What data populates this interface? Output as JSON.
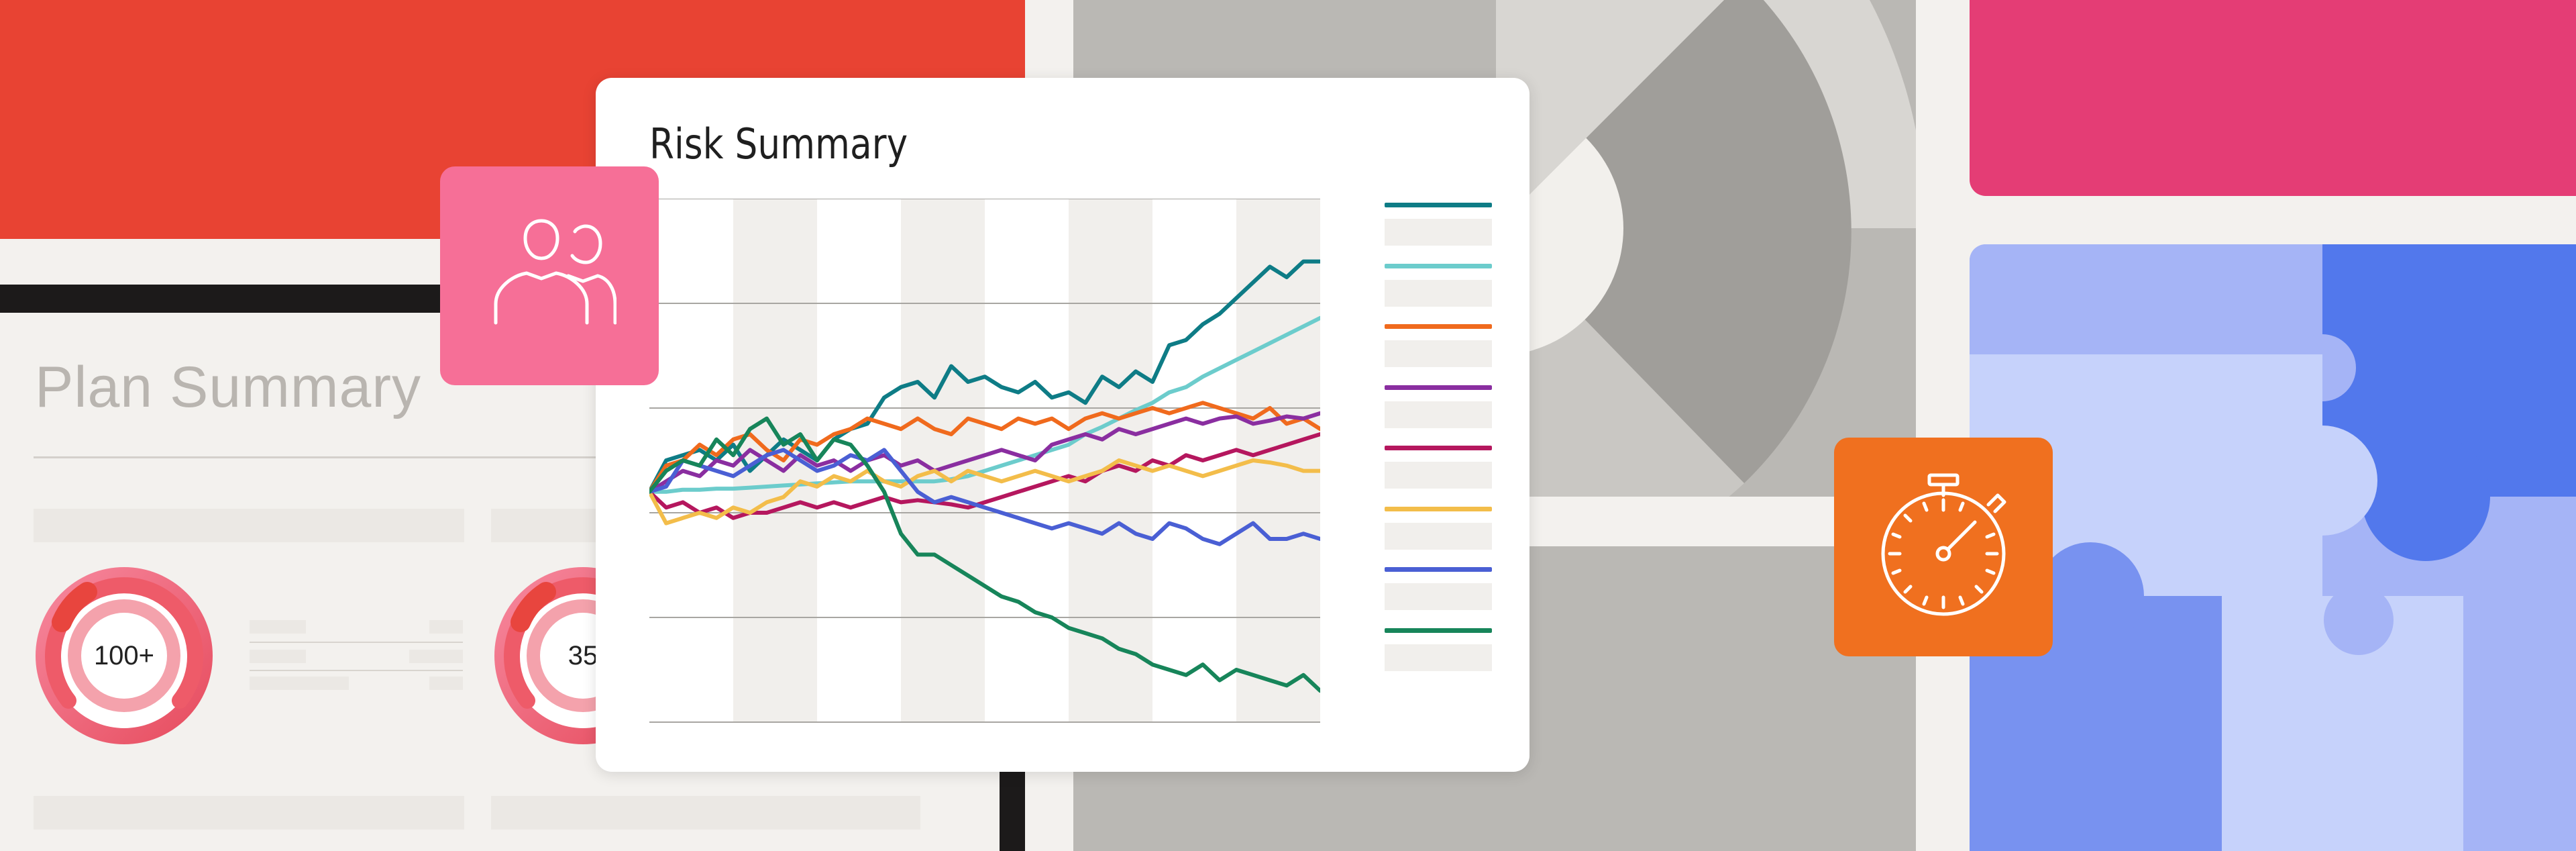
{
  "plan_summary": {
    "title": "Plan Summary",
    "gauges": [
      {
        "value_text": "100+"
      },
      {
        "value_text": "35"
      }
    ]
  },
  "risk_summary": {
    "title": "Risk Summary",
    "legend": [
      {
        "color": "#0e7c86"
      },
      {
        "color": "#6ccccc"
      },
      {
        "color": "#f06a1d"
      },
      {
        "color": "#8a2ea0"
      },
      {
        "color": "#b5175e"
      },
      {
        "color": "#f3bd4a"
      },
      {
        "color": "#4a5fd4"
      },
      {
        "color": "#17855a"
      }
    ]
  },
  "chart_data": {
    "type": "line",
    "title": "Risk Summary",
    "x": [
      0,
      1,
      2,
      3,
      4,
      5,
      6,
      7,
      8,
      9,
      10,
      11,
      12,
      13,
      14,
      15,
      16,
      17,
      18,
      19,
      20,
      21,
      22,
      23,
      24,
      25,
      26,
      27,
      28,
      29,
      30,
      31,
      32,
      33,
      34,
      35,
      36,
      37,
      38,
      39,
      40
    ],
    "ylim": [
      -2.2,
      2.8
    ],
    "grid": true,
    "series": [
      {
        "color": "#0e7c86",
        "values": [
          0,
          0.3,
          0.35,
          0.4,
          0.3,
          0.45,
          0.2,
          0.35,
          0.5,
          0.4,
          0.3,
          0.5,
          0.6,
          0.65,
          0.9,
          1.0,
          1.05,
          0.9,
          1.2,
          1.05,
          1.1,
          1.0,
          0.95,
          1.05,
          0.9,
          0.95,
          0.85,
          1.1,
          1.0,
          1.15,
          1.05,
          1.4,
          1.45,
          1.6,
          1.7,
          1.85,
          2.0,
          2.15,
          2.05,
          2.2,
          2.2
        ]
      },
      {
        "color": "#6ccccc",
        "values": [
          0,
          0.0,
          0.02,
          0.02,
          0.03,
          0.03,
          0.04,
          0.05,
          0.06,
          0.07,
          0.08,
          0.09,
          0.1,
          0.1,
          0.1,
          0.1,
          0.1,
          0.1,
          0.12,
          0.15,
          0.2,
          0.25,
          0.3,
          0.35,
          0.4,
          0.45,
          0.55,
          0.62,
          0.7,
          0.78,
          0.85,
          0.95,
          1.0,
          1.1,
          1.18,
          1.26,
          1.34,
          1.42,
          1.5,
          1.58,
          1.66
        ]
      },
      {
        "color": "#f06a1d",
        "values": [
          0,
          0.25,
          0.3,
          0.45,
          0.35,
          0.5,
          0.55,
          0.4,
          0.3,
          0.5,
          0.45,
          0.55,
          0.6,
          0.7,
          0.65,
          0.6,
          0.7,
          0.6,
          0.55,
          0.7,
          0.65,
          0.6,
          0.7,
          0.65,
          0.7,
          0.6,
          0.7,
          0.75,
          0.7,
          0.75,
          0.8,
          0.75,
          0.8,
          0.85,
          0.8,
          0.75,
          0.7,
          0.8,
          0.65,
          0.7,
          0.6
        ]
      },
      {
        "color": "#8a2ea0",
        "values": [
          0,
          0.1,
          0.2,
          0.15,
          0.3,
          0.25,
          0.4,
          0.3,
          0.2,
          0.35,
          0.25,
          0.3,
          0.2,
          0.3,
          0.35,
          0.25,
          0.3,
          0.2,
          0.25,
          0.3,
          0.35,
          0.4,
          0.35,
          0.3,
          0.45,
          0.5,
          0.55,
          0.5,
          0.6,
          0.55,
          0.6,
          0.65,
          0.7,
          0.65,
          0.7,
          0.72,
          0.65,
          0.68,
          0.72,
          0.7,
          0.75
        ]
      },
      {
        "color": "#b5175e",
        "values": [
          0,
          -0.15,
          -0.1,
          -0.2,
          -0.15,
          -0.25,
          -0.2,
          -0.2,
          -0.15,
          -0.1,
          -0.15,
          -0.1,
          -0.15,
          -0.1,
          -0.05,
          -0.1,
          -0.08,
          -0.1,
          -0.12,
          -0.15,
          -0.1,
          -0.05,
          0.0,
          0.05,
          0.1,
          0.15,
          0.1,
          0.2,
          0.25,
          0.2,
          0.3,
          0.25,
          0.35,
          0.3,
          0.35,
          0.4,
          0.35,
          0.4,
          0.45,
          0.5,
          0.55
        ]
      },
      {
        "color": "#f3bd4a",
        "values": [
          0,
          -0.3,
          -0.25,
          -0.2,
          -0.25,
          -0.15,
          -0.2,
          -0.1,
          -0.05,
          0.1,
          0.05,
          0.15,
          0.1,
          0.2,
          0.1,
          0.05,
          0.15,
          0.2,
          0.1,
          0.2,
          0.15,
          0.1,
          0.15,
          0.2,
          0.15,
          0.1,
          0.15,
          0.2,
          0.3,
          0.25,
          0.2,
          0.25,
          0.2,
          0.15,
          0.2,
          0.25,
          0.3,
          0.28,
          0.25,
          0.2,
          0.2
        ]
      },
      {
        "color": "#4a5fd4",
        "values": [
          0,
          0.05,
          0.3,
          0.25,
          0.2,
          0.15,
          0.25,
          0.35,
          0.4,
          0.3,
          0.2,
          0.25,
          0.35,
          0.3,
          0.4,
          0.2,
          0.0,
          -0.1,
          -0.05,
          -0.1,
          -0.15,
          -0.2,
          -0.25,
          -0.3,
          -0.35,
          -0.3,
          -0.35,
          -0.4,
          -0.3,
          -0.4,
          -0.45,
          -0.3,
          -0.35,
          -0.45,
          -0.5,
          -0.4,
          -0.3,
          -0.45,
          -0.45,
          -0.4,
          -0.45
        ]
      },
      {
        "color": "#17855a",
        "values": [
          0,
          0.2,
          0.3,
          0.25,
          0.5,
          0.35,
          0.6,
          0.7,
          0.45,
          0.55,
          0.3,
          0.5,
          0.45,
          0.25,
          0.0,
          -0.4,
          -0.6,
          -0.6,
          -0.7,
          -0.8,
          -0.9,
          -1.0,
          -1.05,
          -1.15,
          -1.2,
          -1.3,
          -1.35,
          -1.4,
          -1.5,
          -1.55,
          -1.65,
          -1.7,
          -1.75,
          -1.65,
          -1.8,
          -1.7,
          -1.75,
          -1.8,
          -1.85,
          -1.75,
          -1.9
        ]
      }
    ]
  },
  "icons": {
    "users": "users-icon",
    "timer": "stopwatch-icon"
  }
}
